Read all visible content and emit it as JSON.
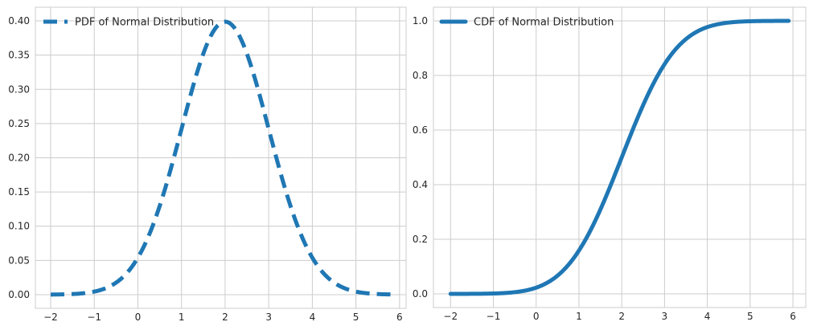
{
  "chart_data": [
    {
      "type": "line",
      "legend": {
        "location": "top-left",
        "label": "PDF of Normal Distribution"
      },
      "series": [
        {
          "name": "PDF of Normal Distribution",
          "color": "#1f77b4",
          "line_style": "dashed",
          "function": "normal_pdf",
          "mean": 2,
          "std": 1,
          "x_range": [
            -2,
            5.8
          ],
          "x": [
            -2,
            -1.5,
            -1,
            -0.5,
            0,
            0.5,
            1,
            1.5,
            2,
            2.5,
            3,
            3.5,
            4,
            4.5,
            5,
            5.5,
            5.8
          ],
          "y": [
            0.0001,
            0.0009,
            0.0044,
            0.0175,
            0.054,
            0.1295,
            0.242,
            0.3521,
            0.3989,
            0.3521,
            0.242,
            0.1295,
            0.054,
            0.0175,
            0.0044,
            0.0009,
            0.0003
          ]
        }
      ],
      "xlim": [
        -2.35,
        6.15
      ],
      "ylim": [
        -0.02,
        0.42
      ],
      "xticks": [
        -2,
        -1,
        0,
        1,
        2,
        3,
        4,
        5,
        6
      ],
      "xtick_labels": [
        "−2",
        "−1",
        "0",
        "1",
        "2",
        "3",
        "4",
        "5",
        "6"
      ],
      "yticks": [
        0,
        0.05,
        0.1,
        0.15,
        0.2,
        0.25,
        0.3,
        0.35,
        0.4
      ],
      "ytick_labels": [
        "0.00",
        "0.05",
        "0.10",
        "0.15",
        "0.20",
        "0.25",
        "0.30",
        "0.35",
        "0.40"
      ],
      "grid": true
    },
    {
      "type": "line",
      "legend": {
        "location": "top-left",
        "label": "CDF of Normal Distribution"
      },
      "series": [
        {
          "name": "CDF of Normal Distribution",
          "color": "#1f77b4",
          "line_style": "solid",
          "function": "normal_cdf",
          "mean": 2,
          "std": 1,
          "x_range": [
            -2,
            5.9
          ],
          "x": [
            -2,
            -1,
            0,
            0.5,
            1,
            1.5,
            2,
            2.5,
            3,
            3.5,
            4,
            5,
            5.9
          ],
          "y": [
            0.0,
            0.0013,
            0.0228,
            0.0668,
            0.1587,
            0.3085,
            0.5,
            0.6915,
            0.8413,
            0.9332,
            0.9772,
            0.9987,
            1.0
          ]
        }
      ],
      "xlim": [
        -2.4,
        6.3
      ],
      "ylim": [
        -0.05,
        1.05
      ],
      "xticks": [
        -2,
        -1,
        0,
        1,
        2,
        3,
        4,
        5,
        6
      ],
      "xtick_labels": [
        "−2",
        "−1",
        "0",
        "1",
        "2",
        "3",
        "4",
        "5",
        "6"
      ],
      "yticks": [
        0,
        0.2,
        0.4,
        0.6,
        0.8,
        1.0
      ],
      "ytick_labels": [
        "0.0",
        "0.2",
        "0.4",
        "0.6",
        "0.8",
        "1.0"
      ],
      "grid": true
    }
  ]
}
